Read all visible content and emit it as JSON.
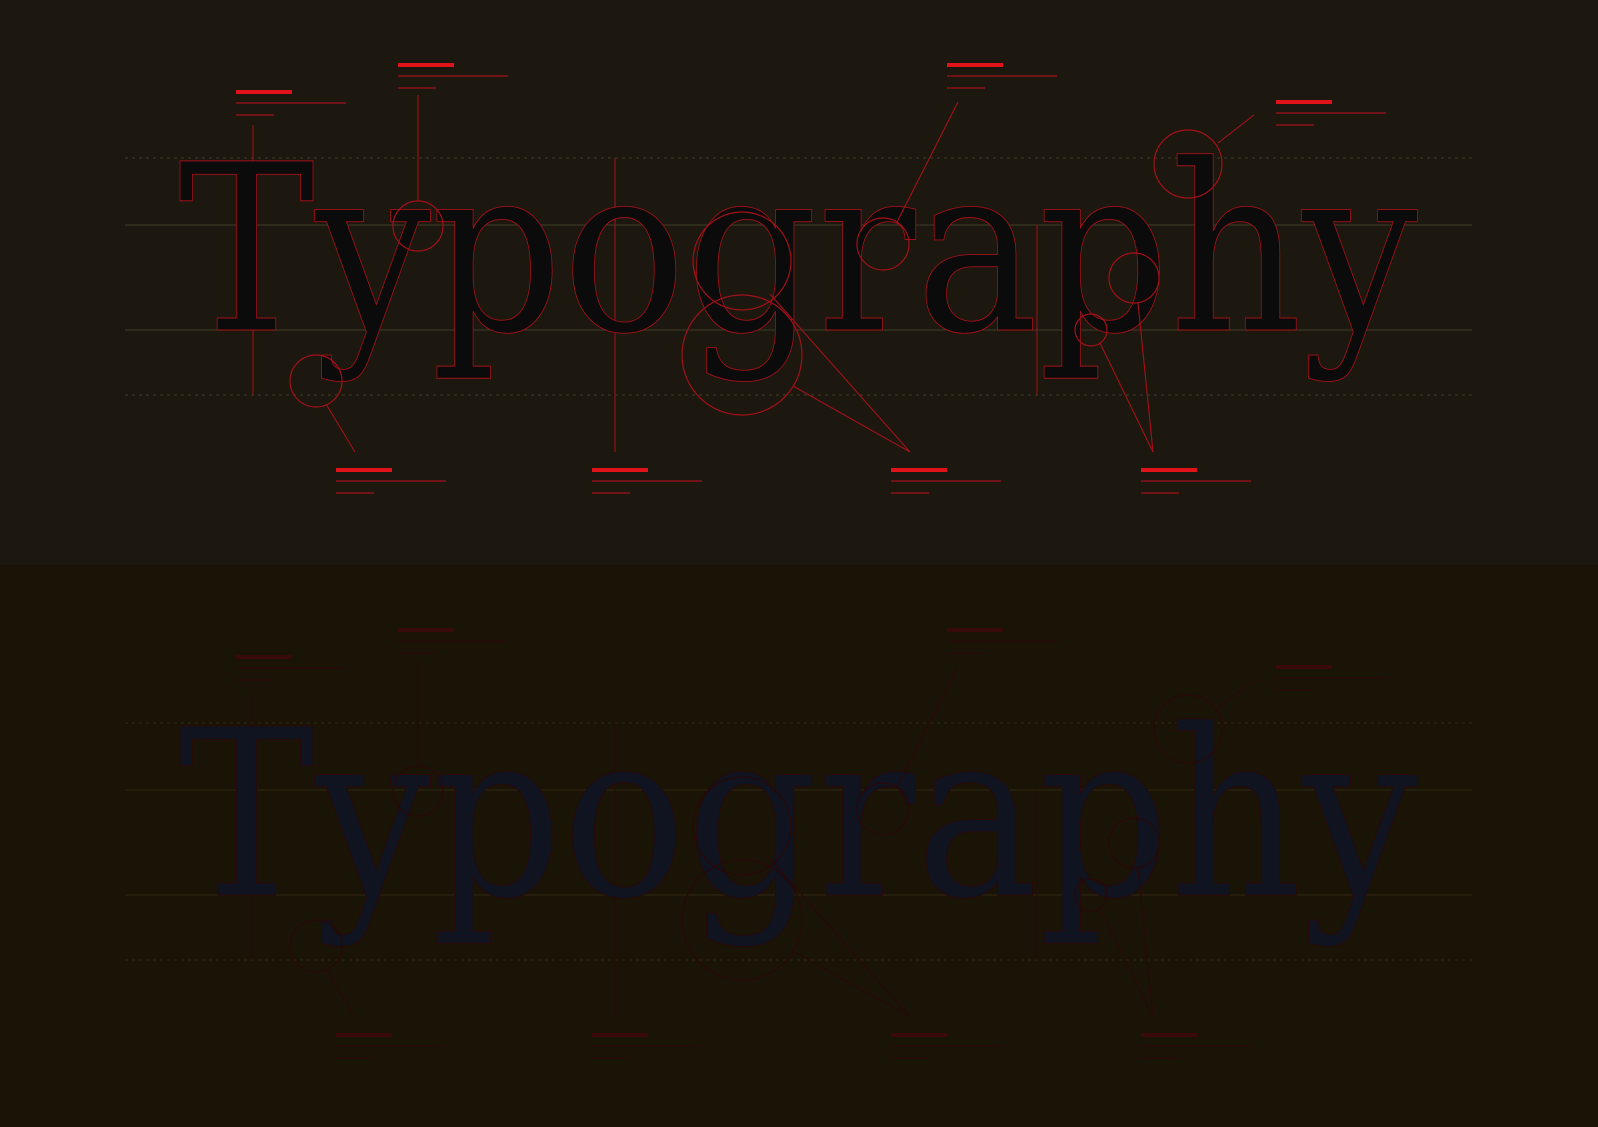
{
  "panels": [
    {
      "word": "Typography",
      "background": "#1c180f",
      "glyph_color": "#0b0b0b",
      "accent": "#e0121a",
      "accent_dim": "#a3101a",
      "guide_color": "#3a3424",
      "callout_opacity": 1
    },
    {
      "word": "Typography",
      "background": "#1a1407",
      "glyph_color": "#0f1420",
      "accent": "#3a0a0a",
      "accent_dim": "#2a0808",
      "guide_color": "#2c2410",
      "callout_opacity": 1
    }
  ]
}
